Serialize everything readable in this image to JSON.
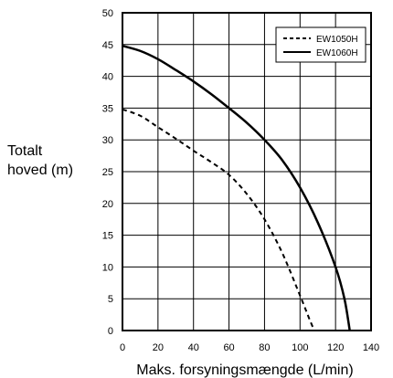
{
  "chart_data": {
    "type": "line",
    "title": "",
    "xlabel": "Maks. forsyningsmængde (L/min)",
    "ylabel_lines": [
      "Totalt",
      "hoved (m)"
    ],
    "xlim": [
      0,
      140
    ],
    "ylim": [
      0,
      50
    ],
    "x_ticks": [
      0,
      20,
      40,
      60,
      80,
      100,
      120,
      140
    ],
    "y_ticks": [
      0,
      5,
      10,
      15,
      20,
      25,
      30,
      35,
      40,
      45,
      50
    ],
    "x_grid_step": 20,
    "grid": true,
    "legend_position": "top-right",
    "series": [
      {
        "name": "EW1050H",
        "line_style": "dashed",
        "color": "#000000",
        "x": [
          0,
          10,
          20,
          30,
          40,
          50,
          60,
          70,
          80,
          90,
          100,
          105,
          108
        ],
        "y": [
          34.8,
          33.8,
          32.0,
          30.2,
          28.3,
          26.5,
          24.5,
          21.5,
          17.5,
          12.2,
          5.5,
          2.0,
          0
        ]
      },
      {
        "name": "EW1060H",
        "line_style": "solid",
        "color": "#000000",
        "x": [
          0,
          10,
          20,
          30,
          40,
          50,
          60,
          70,
          80,
          90,
          100,
          110,
          120,
          125,
          128
        ],
        "y": [
          44.8,
          44.0,
          42.7,
          41.0,
          39.2,
          37.2,
          35.0,
          32.7,
          30.0,
          26.8,
          22.5,
          17.0,
          10.0,
          5.0,
          0
        ]
      }
    ]
  }
}
